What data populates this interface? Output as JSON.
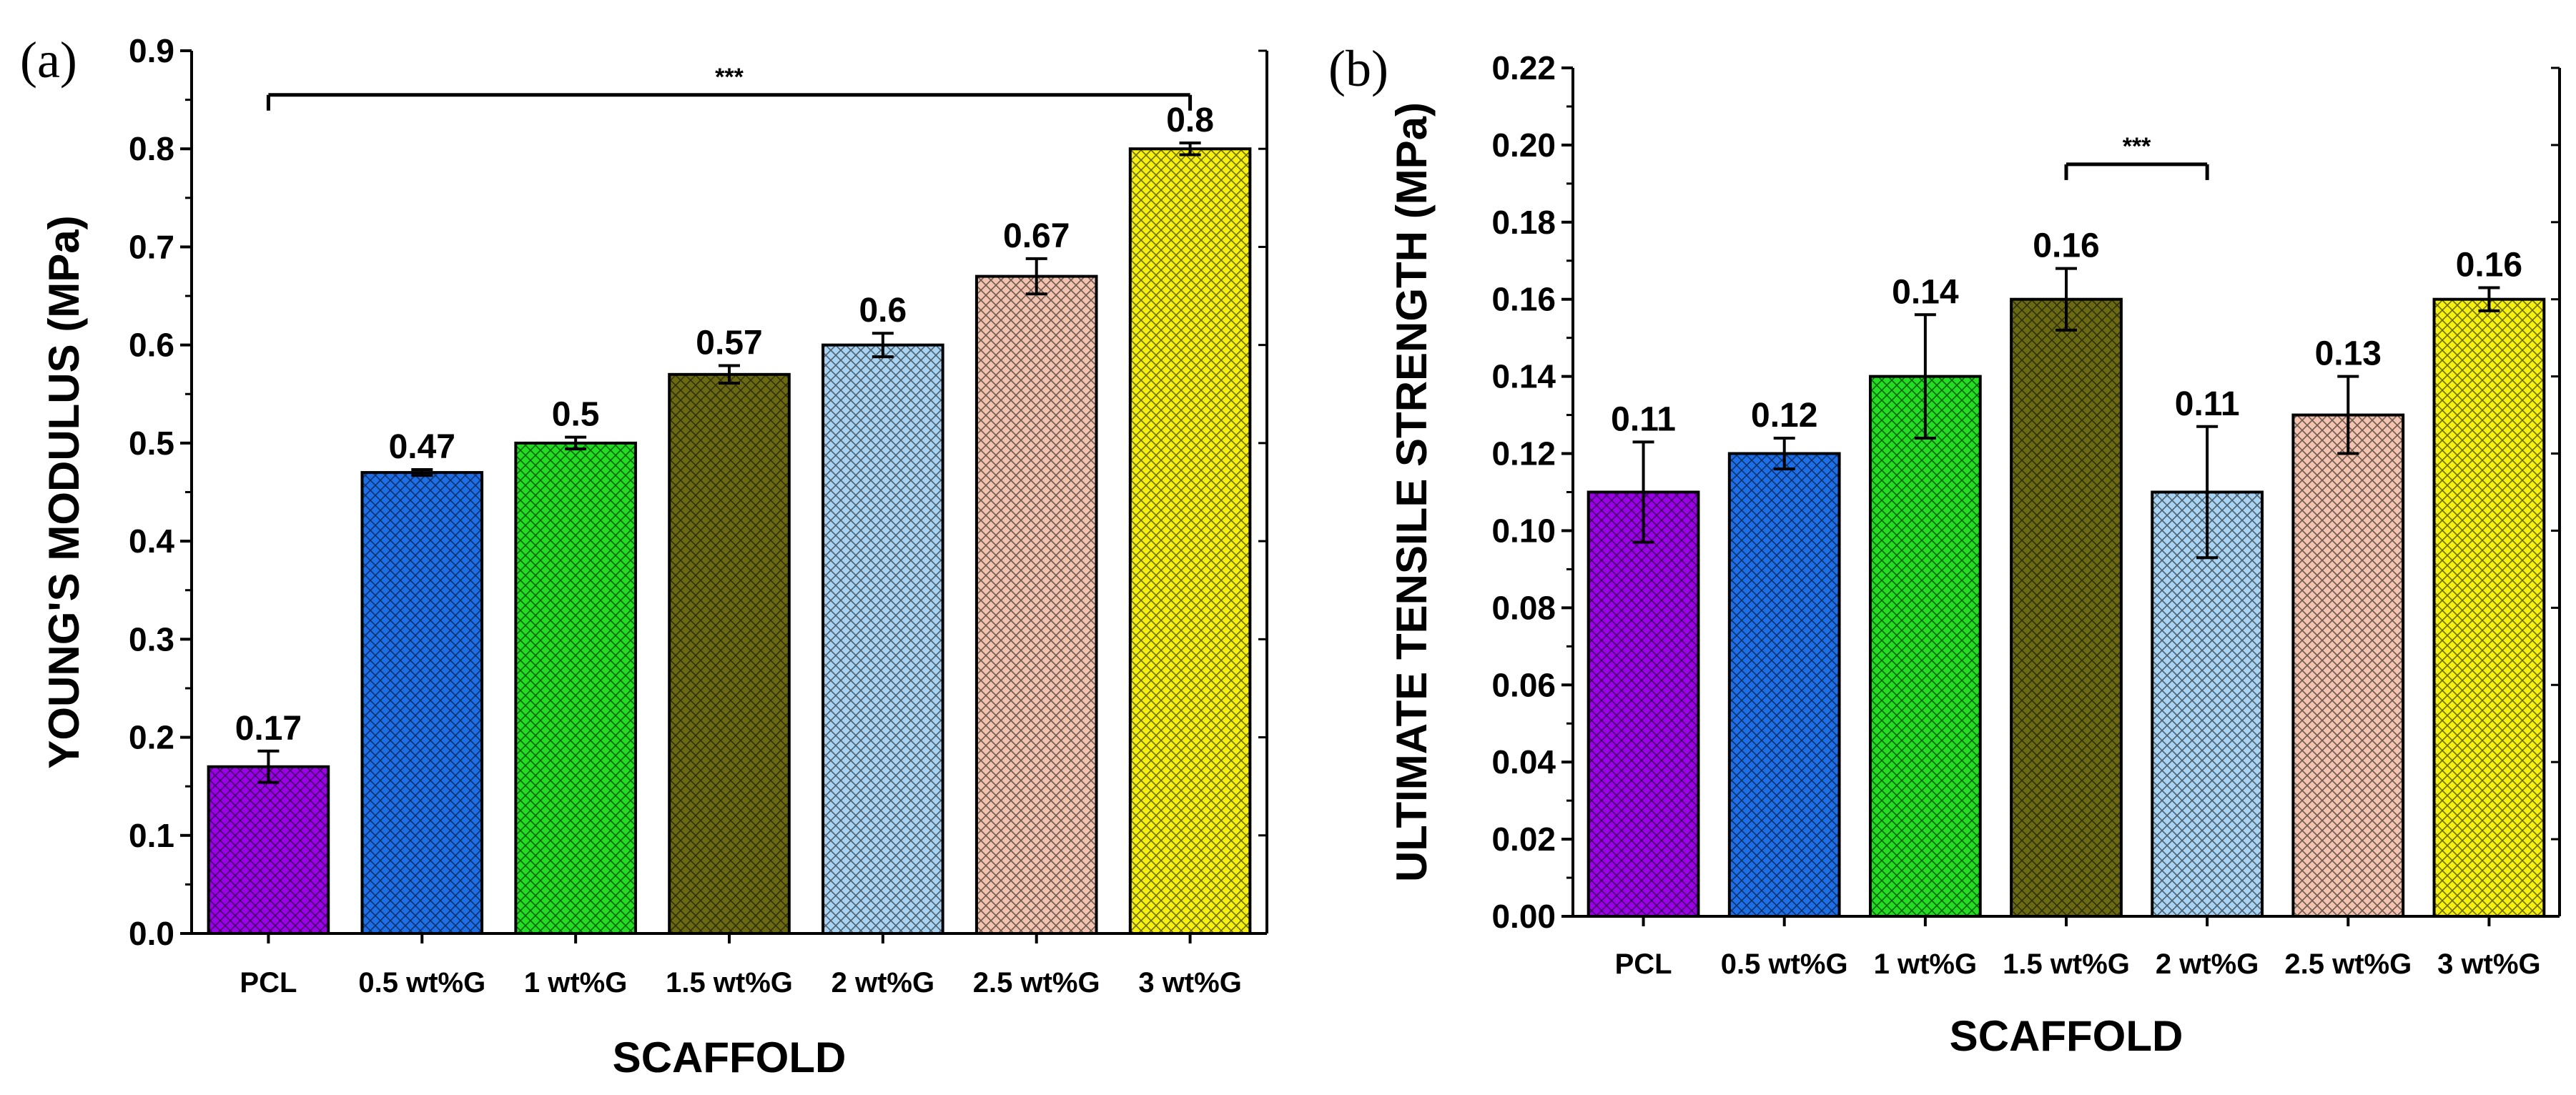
{
  "chart_data": [
    {
      "panel": "(a)",
      "type": "bar",
      "title": "",
      "xlabel": "SCAFFOLD",
      "ylabel": "YOUNG'S MODULUS (MPa)",
      "ylim": [
        0,
        0.9
      ],
      "yticks": [
        "0.0",
        "0.1",
        "0.2",
        "0.3",
        "0.4",
        "0.5",
        "0.6",
        "0.7",
        "0.8",
        "0.9"
      ],
      "categories": [
        "PCL",
        "0.5 wt%G",
        "1 wt%G",
        "1.5 wt%G",
        "2 wt%G",
        "2.5 wt%G",
        "3 wt%G"
      ],
      "values": [
        0.17,
        0.47,
        0.5,
        0.57,
        0.6,
        0.67,
        0.8
      ],
      "value_labels": [
        "0.17",
        "0.47",
        "0.5",
        "0.57",
        "0.6",
        "0.67",
        "0.8"
      ],
      "errors": [
        0.016,
        0.003,
        0.006,
        0.009,
        0.012,
        0.018,
        0.006
      ],
      "colors": [
        "#9b00e8",
        "#1d6fe8",
        "#22dd22",
        "#6b6a12",
        "#a8d3f2",
        "#f2c4b0",
        "#f5f010"
      ],
      "significance": {
        "from": 0,
        "to": 6,
        "label": "***",
        "y": 0.855
      }
    },
    {
      "panel": "(b)",
      "type": "bar",
      "title": "",
      "xlabel": "SCAFFOLD",
      "ylabel": "ULTIMATE TENSILE STRENGTH  (MPa)",
      "ylim": [
        0,
        0.22
      ],
      "yticks": [
        "0.00",
        "0.02",
        "0.04",
        "0.06",
        "0.08",
        "0.10",
        "0.12",
        "0.14",
        "0.16",
        "0.18",
        "0.20",
        "0.22"
      ],
      "categories": [
        "PCL",
        "0.5 wt%G",
        "1 wt%G",
        "1.5 wt%G",
        "2 wt%G",
        "2.5 wt%G",
        "3 wt%G"
      ],
      "values": [
        0.11,
        0.12,
        0.14,
        0.16,
        0.11,
        0.13,
        0.16
      ],
      "value_labels": [
        "0.11",
        "0.12",
        "0.14",
        "0.16",
        "0.11",
        "0.13",
        "0.16"
      ],
      "errors": [
        0.013,
        0.004,
        0.016,
        0.008,
        0.017,
        0.01,
        0.003
      ],
      "colors": [
        "#9b00e8",
        "#1d6fe8",
        "#22dd22",
        "#6b6a12",
        "#a8d3f2",
        "#f2c4b0",
        "#f5f010"
      ],
      "significance": {
        "from": 3,
        "to": 4,
        "label": "***",
        "y": 0.195
      }
    }
  ]
}
